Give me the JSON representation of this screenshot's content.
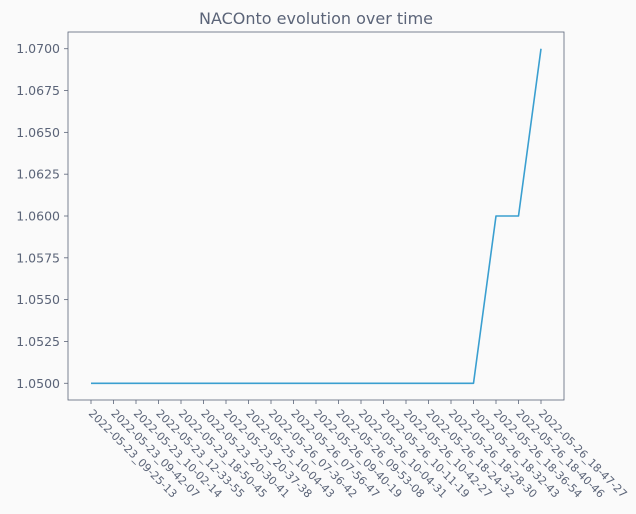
{
  "chart_data": {
    "type": "line",
    "title": "NACOnto evolution over time",
    "xlabel": "",
    "ylabel": "",
    "x": [
      "2022-05-23_09-25-13",
      "2022-05-23_09-42-07",
      "2022-05-23_10-02-14",
      "2022-05-23_12-33-55",
      "2022-05-23_18-50-45",
      "2022-05-23_20-30-41",
      "2022-05-23_20-37-38",
      "2022-05-25_10-04-43",
      "2022-05-26_07-36-42",
      "2022-05-26_07-56-47",
      "2022-05-26_09-40-19",
      "2022-05-26_09-53-08",
      "2022-05-26_10-04-31",
      "2022-05-26_10-11-19",
      "2022-05-26_10-42-27",
      "2022-05-26_18-24-32",
      "2022-05-26_18-28-30",
      "2022-05-26_18-32-43",
      "2022-05-26_18-36-54",
      "2022-05-26_18-40-46",
      "2022-05-26_18-47-27"
    ],
    "series": [
      {
        "values": [
          1.05,
          1.05,
          1.05,
          1.05,
          1.05,
          1.05,
          1.05,
          1.05,
          1.05,
          1.05,
          1.05,
          1.05,
          1.05,
          1.05,
          1.05,
          1.05,
          1.05,
          1.05,
          1.06,
          1.06,
          1.07
        ]
      }
    ],
    "yticks": [
      "1.0500",
      "1.0525",
      "1.0550",
      "1.0575",
      "1.0600",
      "1.0625",
      "1.0650",
      "1.0675",
      "1.0700"
    ],
    "ylim": [
      1.049,
      1.071
    ],
    "grid": false,
    "colors": {
      "line": "#3a9fd0",
      "axis": "#5b6478",
      "background": "#fafafa"
    }
  }
}
